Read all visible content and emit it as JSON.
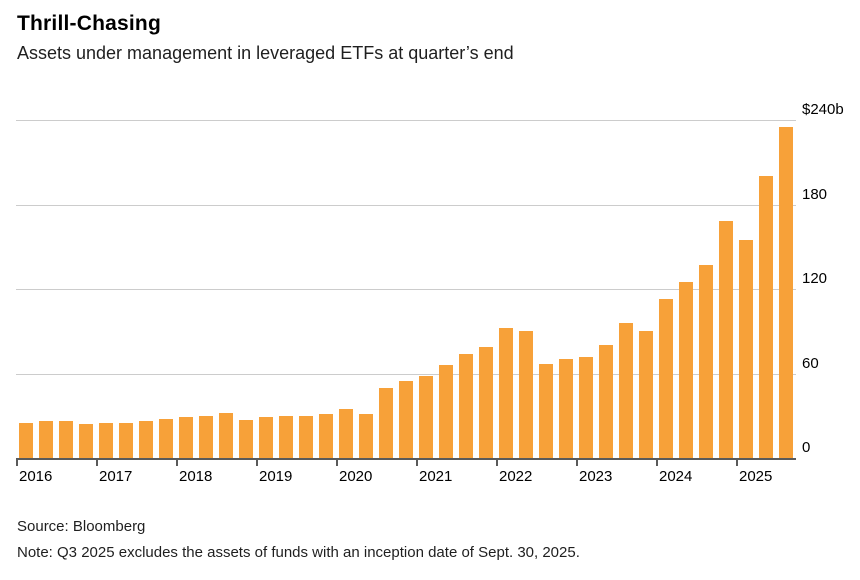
{
  "header": {
    "title": "Thrill-Chasing",
    "subtitle": "Assets under management in leveraged ETFs at quarter’s end"
  },
  "chart_data": {
    "type": "bar",
    "title": "Thrill-Chasing",
    "subtitle": "Assets under management in leveraged ETFs at quarter’s end",
    "unit": "USD billions",
    "bar_color": "#F7A139",
    "ylim": [
      0,
      240
    ],
    "grid": true,
    "yticks": [
      {
        "value": 0,
        "label": "0"
      },
      {
        "value": 60,
        "label": "60"
      },
      {
        "value": 120,
        "label": "120"
      },
      {
        "value": 180,
        "label": "180"
      },
      {
        "value": 240,
        "label": "$240b"
      }
    ],
    "groups": [
      {
        "year": "2016",
        "values": [
          25,
          26,
          26,
          24
        ]
      },
      {
        "year": "2017",
        "values": [
          25,
          25,
          26,
          28
        ]
      },
      {
        "year": "2018",
        "values": [
          29,
          30,
          32,
          27
        ]
      },
      {
        "year": "2019",
        "values": [
          29,
          30,
          30,
          31
        ]
      },
      {
        "year": "2020",
        "values": [
          35,
          31,
          50,
          55
        ]
      },
      {
        "year": "2021",
        "values": [
          58,
          66,
          74,
          79
        ]
      },
      {
        "year": "2022",
        "values": [
          92,
          90,
          67,
          70
        ]
      },
      {
        "year": "2023",
        "values": [
          72,
          80,
          96,
          90
        ]
      },
      {
        "year": "2024",
        "values": [
          113,
          125,
          137,
          168
        ]
      },
      {
        "year": "2025",
        "values": [
          155,
          200,
          235
        ]
      }
    ]
  },
  "footer": {
    "source": "Source: Bloomberg",
    "note": "Note: Q3 2025 excludes the assets of funds with an inception date of Sept. 30, 2025."
  }
}
